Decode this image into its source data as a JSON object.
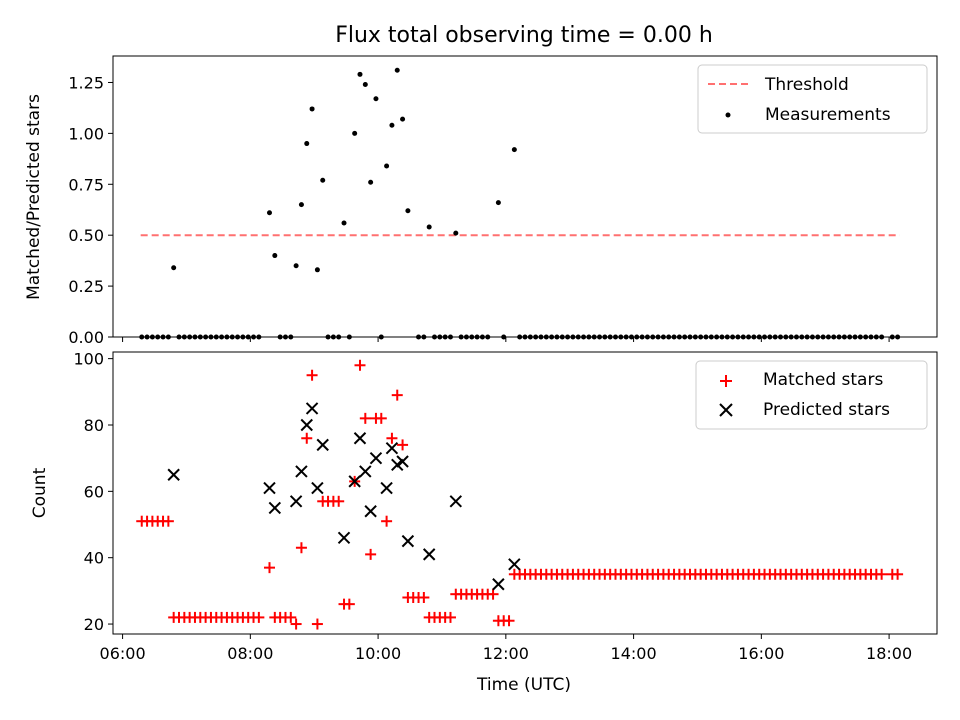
{
  "chart_data": [
    {
      "type": "scatter",
      "title": "Flux total observing time = 0.00 h",
      "ylabel": "Matched/Predicted stars",
      "xlim_hours": [
        5.85,
        18.75
      ],
      "ylim": [
        0,
        1.38
      ],
      "yticks": [
        "0.00",
        "0.25",
        "0.50",
        "0.75",
        "1.00",
        "1.25"
      ],
      "legend": {
        "placement": "upper right",
        "items": [
          "Threshold",
          "Measurements"
        ]
      },
      "colors": {
        "threshold": "#ff7070",
        "measurements": "#000000"
      },
      "series": [
        {
          "name": "Threshold",
          "kind": "dashed-line",
          "x": [
            "06:17",
            "18:10"
          ],
          "y": [
            0.5,
            0.5
          ]
        },
        {
          "name": "Measurements",
          "kind": "dots",
          "x": [
            "06:48",
            "08:18",
            "08:23",
            "08:43",
            "08:48",
            "08:53",
            "08:58",
            "09:03",
            "09:08",
            "09:28",
            "09:38",
            "09:43",
            "09:48",
            "09:53",
            "09:58",
            "10:08",
            "10:13",
            "10:18",
            "10:23",
            "10:28",
            "10:48",
            "11:13",
            "11:53",
            "12:08"
          ],
          "y": [
            0.34,
            0.61,
            0.4,
            0.35,
            0.65,
            0.95,
            1.12,
            0.33,
            0.77,
            0.56,
            1.0,
            1.29,
            1.24,
            0.76,
            1.17,
            0.84,
            1.04,
            1.31,
            1.07,
            0.62,
            0.54,
            0.51,
            0.66,
            0.92
          ],
          "zero_x": [
            "06:18",
            "06:23",
            "06:28",
            "06:33",
            "06:38",
            "06:43",
            "06:53",
            "06:58",
            "07:03",
            "07:08",
            "07:13",
            "07:18",
            "07:23",
            "07:28",
            "07:33",
            "07:38",
            "07:43",
            "07:48",
            "07:53",
            "07:58",
            "08:03",
            "08:08",
            "08:28",
            "08:33",
            "08:38",
            "09:13",
            "09:18",
            "09:23",
            "09:33",
            "10:03",
            "10:38",
            "10:43",
            "10:53",
            "10:58",
            "11:03",
            "11:08",
            "11:18",
            "11:23",
            "11:28",
            "11:33",
            "11:38",
            "11:43",
            "11:58",
            "12:13",
            "12:18",
            "12:23",
            "12:28",
            "12:33",
            "12:38",
            "12:43",
            "12:48",
            "12:53",
            "12:58",
            "13:03",
            "13:08",
            "13:13",
            "13:18",
            "13:23",
            "13:28",
            "13:33",
            "13:38",
            "13:43",
            "13:48",
            "13:53",
            "13:58",
            "14:03",
            "14:08",
            "14:13",
            "14:18",
            "14:23",
            "14:28",
            "14:33",
            "14:38",
            "14:43",
            "14:48",
            "14:53",
            "14:58",
            "15:03",
            "15:08",
            "15:13",
            "15:18",
            "15:23",
            "15:28",
            "15:33",
            "15:38",
            "15:43",
            "15:48",
            "15:53",
            "15:58",
            "16:03",
            "16:08",
            "16:13",
            "16:18",
            "16:23",
            "16:28",
            "16:33",
            "16:38",
            "16:43",
            "16:48",
            "16:53",
            "16:58",
            "17:03",
            "17:08",
            "17:13",
            "17:18",
            "17:23",
            "17:28",
            "17:33",
            "17:38",
            "17:43",
            "17:48",
            "17:53",
            "18:03",
            "18:08"
          ]
        }
      ]
    },
    {
      "type": "scatter",
      "xlabel": "Time (UTC)",
      "ylabel": "Count",
      "xlim_hours": [
        5.85,
        18.75
      ],
      "ylim": [
        17,
        102
      ],
      "xticks": [
        "06:00",
        "08:00",
        "10:00",
        "12:00",
        "14:00",
        "16:00",
        "18:00"
      ],
      "yticks": [
        "20",
        "40",
        "60",
        "80",
        "100"
      ],
      "legend": {
        "placement": "upper right",
        "items": [
          "Matched stars",
          "Predicted stars"
        ]
      },
      "colors": {
        "matched": "#ff0000",
        "predicted": "#000000"
      },
      "series": [
        {
          "name": "Matched stars",
          "marker": "plus",
          "points": [
            [
              "06:18",
              51
            ],
            [
              "06:23",
              51
            ],
            [
              "06:28",
              51
            ],
            [
              "06:33",
              51
            ],
            [
              "06:38",
              51
            ],
            [
              "06:43",
              51
            ],
            [
              "06:48",
              22
            ],
            [
              "06:53",
              22
            ],
            [
              "06:58",
              22
            ],
            [
              "07:03",
              22
            ],
            [
              "07:08",
              22
            ],
            [
              "07:13",
              22
            ],
            [
              "07:18",
              22
            ],
            [
              "07:23",
              22
            ],
            [
              "07:28",
              22
            ],
            [
              "07:33",
              22
            ],
            [
              "07:38",
              22
            ],
            [
              "07:43",
              22
            ],
            [
              "07:48",
              22
            ],
            [
              "07:53",
              22
            ],
            [
              "07:58",
              22
            ],
            [
              "08:03",
              22
            ],
            [
              "08:08",
              22
            ],
            [
              "08:18",
              37
            ],
            [
              "08:23",
              22
            ],
            [
              "08:28",
              22
            ],
            [
              "08:33",
              22
            ],
            [
              "08:38",
              22
            ],
            [
              "08:43",
              20
            ],
            [
              "08:48",
              43
            ],
            [
              "08:53",
              76
            ],
            [
              "08:58",
              95
            ],
            [
              "09:03",
              20
            ],
            [
              "09:08",
              57
            ],
            [
              "09:13",
              57
            ],
            [
              "09:18",
              57
            ],
            [
              "09:23",
              57
            ],
            [
              "09:28",
              26
            ],
            [
              "09:33",
              26
            ],
            [
              "09:38",
              63
            ],
            [
              "09:43",
              98
            ],
            [
              "09:48",
              82
            ],
            [
              "09:53",
              41
            ],
            [
              "09:58",
              82
            ],
            [
              "10:03",
              82
            ],
            [
              "10:08",
              51
            ],
            [
              "10:13",
              76
            ],
            [
              "10:18",
              89
            ],
            [
              "10:23",
              74
            ],
            [
              "10:28",
              28
            ],
            [
              "10:33",
              28
            ],
            [
              "10:38",
              28
            ],
            [
              "10:43",
              28
            ],
            [
              "10:48",
              22
            ],
            [
              "10:53",
              22
            ],
            [
              "10:58",
              22
            ],
            [
              "11:03",
              22
            ],
            [
              "11:08",
              22
            ],
            [
              "11:13",
              29
            ],
            [
              "11:18",
              29
            ],
            [
              "11:23",
              29
            ],
            [
              "11:28",
              29
            ],
            [
              "11:33",
              29
            ],
            [
              "11:38",
              29
            ],
            [
              "11:43",
              29
            ],
            [
              "11:48",
              29
            ],
            [
              "11:53",
              21
            ],
            [
              "11:58",
              21
            ],
            [
              "12:03",
              21
            ],
            [
              "12:08",
              35
            ],
            [
              "12:13",
              35
            ],
            [
              "12:18",
              35
            ],
            [
              "12:23",
              35
            ],
            [
              "12:28",
              35
            ],
            [
              "12:33",
              35
            ],
            [
              "12:38",
              35
            ],
            [
              "12:43",
              35
            ],
            [
              "12:48",
              35
            ],
            [
              "12:53",
              35
            ],
            [
              "12:58",
              35
            ],
            [
              "13:03",
              35
            ],
            [
              "13:08",
              35
            ],
            [
              "13:13",
              35
            ],
            [
              "13:18",
              35
            ],
            [
              "13:23",
              35
            ],
            [
              "13:28",
              35
            ],
            [
              "13:33",
              35
            ],
            [
              "13:38",
              35
            ],
            [
              "13:43",
              35
            ],
            [
              "13:48",
              35
            ],
            [
              "13:53",
              35
            ],
            [
              "13:58",
              35
            ],
            [
              "14:03",
              35
            ],
            [
              "14:08",
              35
            ],
            [
              "14:13",
              35
            ],
            [
              "14:18",
              35
            ],
            [
              "14:23",
              35
            ],
            [
              "14:28",
              35
            ],
            [
              "14:33",
              35
            ],
            [
              "14:38",
              35
            ],
            [
              "14:43",
              35
            ],
            [
              "14:48",
              35
            ],
            [
              "14:53",
              35
            ],
            [
              "14:58",
              35
            ],
            [
              "15:03",
              35
            ],
            [
              "15:08",
              35
            ],
            [
              "15:13",
              35
            ],
            [
              "15:18",
              35
            ],
            [
              "15:23",
              35
            ],
            [
              "15:28",
              35
            ],
            [
              "15:33",
              35
            ],
            [
              "15:38",
              35
            ],
            [
              "15:43",
              35
            ],
            [
              "15:48",
              35
            ],
            [
              "15:53",
              35
            ],
            [
              "15:58",
              35
            ],
            [
              "16:03",
              35
            ],
            [
              "16:08",
              35
            ],
            [
              "16:13",
              35
            ],
            [
              "16:18",
              35
            ],
            [
              "16:23",
              35
            ],
            [
              "16:28",
              35
            ],
            [
              "16:33",
              35
            ],
            [
              "16:38",
              35
            ],
            [
              "16:43",
              35
            ],
            [
              "16:48",
              35
            ],
            [
              "16:53",
              35
            ],
            [
              "16:58",
              35
            ],
            [
              "17:03",
              35
            ],
            [
              "17:08",
              35
            ],
            [
              "17:13",
              35
            ],
            [
              "17:18",
              35
            ],
            [
              "17:23",
              35
            ],
            [
              "17:28",
              35
            ],
            [
              "17:33",
              35
            ],
            [
              "17:38",
              35
            ],
            [
              "17:43",
              35
            ],
            [
              "17:48",
              35
            ],
            [
              "17:53",
              35
            ],
            [
              "18:03",
              35
            ],
            [
              "18:08",
              35
            ]
          ]
        },
        {
          "name": "Predicted stars",
          "marker": "x",
          "points": [
            [
              "06:48",
              65
            ],
            [
              "08:18",
              61
            ],
            [
              "08:23",
              55
            ],
            [
              "08:43",
              57
            ],
            [
              "08:48",
              66
            ],
            [
              "08:53",
              80
            ],
            [
              "08:58",
              85
            ],
            [
              "09:03",
              61
            ],
            [
              "09:08",
              74
            ],
            [
              "09:28",
              46
            ],
            [
              "09:38",
              63
            ],
            [
              "09:43",
              76
            ],
            [
              "09:48",
              66
            ],
            [
              "09:53",
              54
            ],
            [
              "09:58",
              70
            ],
            [
              "10:08",
              61
            ],
            [
              "10:13",
              73
            ],
            [
              "10:18",
              68
            ],
            [
              "10:23",
              69
            ],
            [
              "10:28",
              45
            ],
            [
              "10:48",
              41
            ],
            [
              "11:13",
              57
            ],
            [
              "11:53",
              32
            ],
            [
              "12:08",
              38
            ]
          ]
        }
      ]
    }
  ]
}
